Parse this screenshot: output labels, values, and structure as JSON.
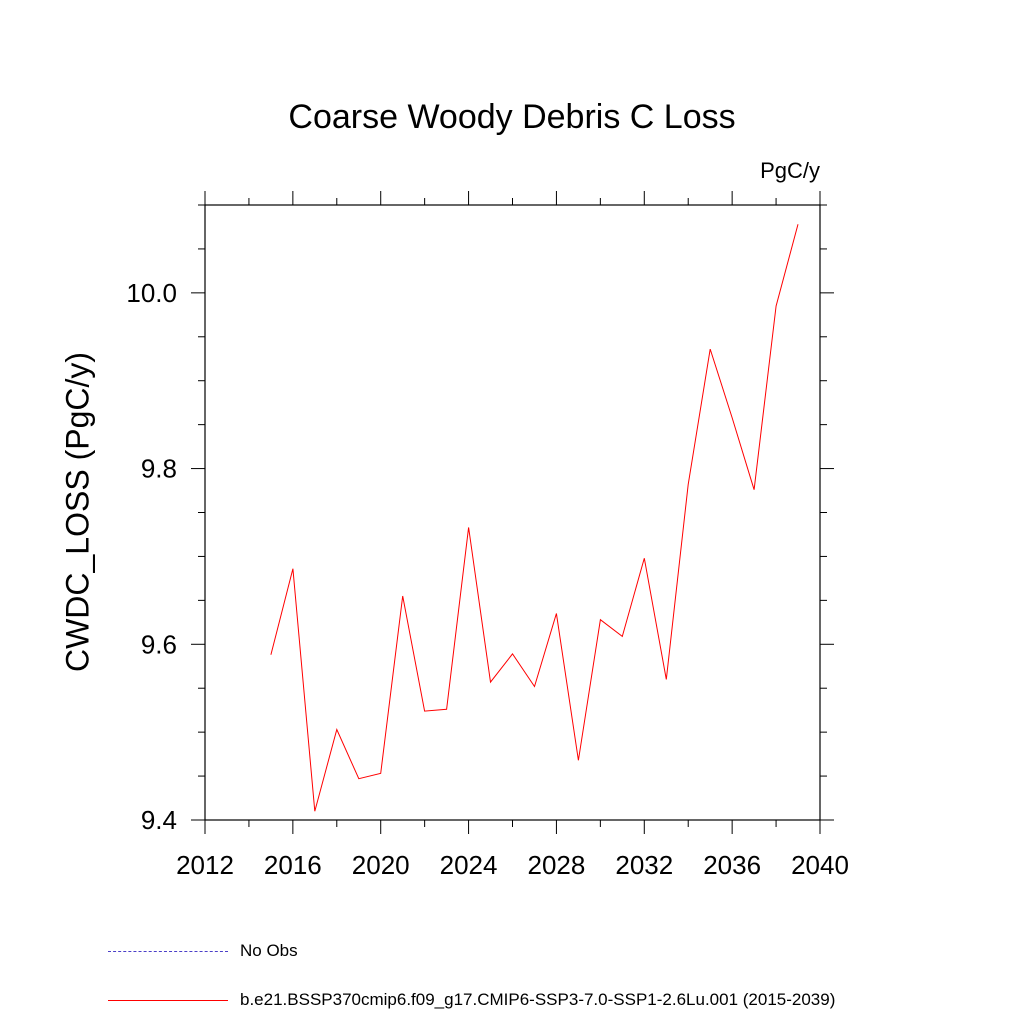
{
  "chart_data": {
    "type": "line",
    "title": "Coarse Woody Debris C Loss",
    "units_label": "PgC/y",
    "ylabel": "CWDC_LOSS  (PgC/y)",
    "xlabel": "",
    "xlim": [
      2012,
      2040
    ],
    "ylim": [
      9.4,
      10.1
    ],
    "x_ticks": [
      "2012",
      "2016",
      "2020",
      "2024",
      "2028",
      "2032",
      "2036",
      "2040"
    ],
    "y_ticks": [
      "9.4",
      "9.6",
      "9.8",
      "10.0"
    ],
    "series": [
      {
        "name": "b.e21.BSSP370cmip6.f09_g17.CMIP6-SSP3-7.0-SSP1-2.6Lu.001 (2015-2039)",
        "color": "#ff0000",
        "x": [
          2015,
          2016,
          2017,
          2018,
          2019,
          2020,
          2021,
          2022,
          2023,
          2024,
          2025,
          2026,
          2027,
          2028,
          2029,
          2030,
          2031,
          2032,
          2033,
          2034,
          2035,
          2036,
          2037,
          2038,
          2039
        ],
        "y": [
          9.588,
          9.686,
          9.41,
          9.503,
          9.447,
          9.453,
          9.655,
          9.524,
          9.526,
          9.733,
          9.557,
          9.589,
          9.552,
          9.635,
          9.468,
          9.628,
          9.609,
          9.698,
          9.56,
          9.782,
          9.936,
          9.858,
          9.776,
          9.985,
          10.078
        ]
      }
    ]
  },
  "legend": [
    {
      "label": "No Obs",
      "style": "dashed",
      "color": "#4b3fc8"
    },
    {
      "label": "b.e21.BSSP370cmip6.f09_g17.CMIP6-SSP3-7.0-SSP1-2.6Lu.001 (2015-2039)",
      "style": "solid",
      "color": "#ff0000"
    }
  ]
}
